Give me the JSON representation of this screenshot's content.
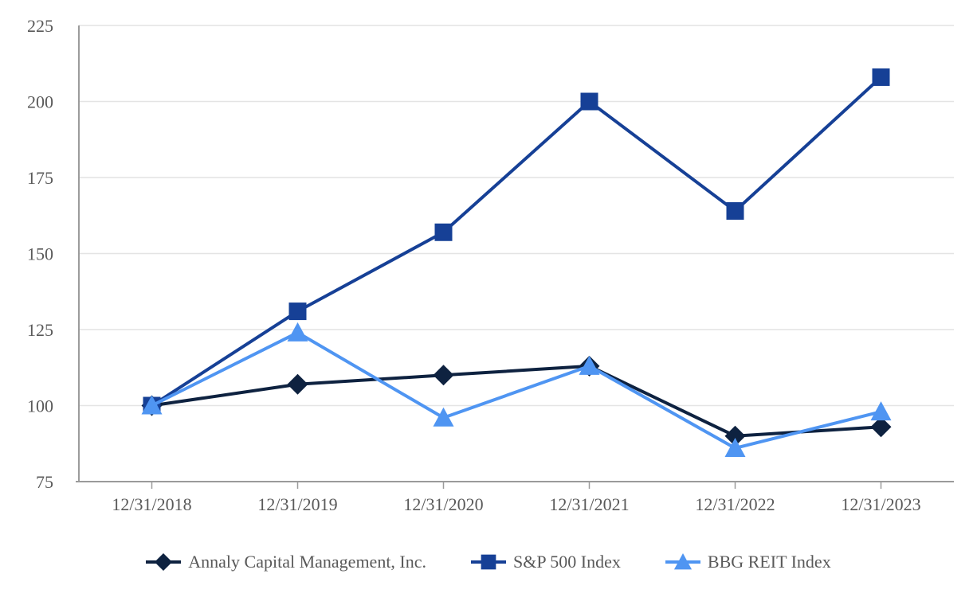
{
  "chart_data": {
    "type": "line",
    "title": "",
    "xlabel": "",
    "ylabel": "",
    "x": [
      "12/31/2018",
      "12/31/2019",
      "12/31/2020",
      "12/31/2021",
      "12/31/2022",
      "12/31/2023"
    ],
    "series": [
      {
        "name": "Annaly Capital Management, Inc.",
        "values": [
          100,
          107,
          110,
          113,
          90,
          93
        ],
        "color": "#0E2240",
        "marker": "diamond"
      },
      {
        "name": "S&P 500 Index",
        "values": [
          100,
          131,
          157,
          200,
          164,
          208
        ],
        "color": "#164096",
        "marker": "square"
      },
      {
        "name": "BBG REIT Index",
        "values": [
          100,
          124,
          96,
          113,
          86,
          98
        ],
        "color": "#4F95F2",
        "marker": "triangle"
      }
    ],
    "ylim": [
      75,
      225
    ],
    "yticks": [
      75,
      100,
      125,
      150,
      175,
      200,
      225
    ],
    "grid": "horizontal",
    "legend_position": "bottom"
  },
  "styles": {
    "text_color": "#595959",
    "axis_color": "#9B9B9B",
    "grid_color": "#E4E4E4",
    "background_color": "#FFFFFF"
  }
}
